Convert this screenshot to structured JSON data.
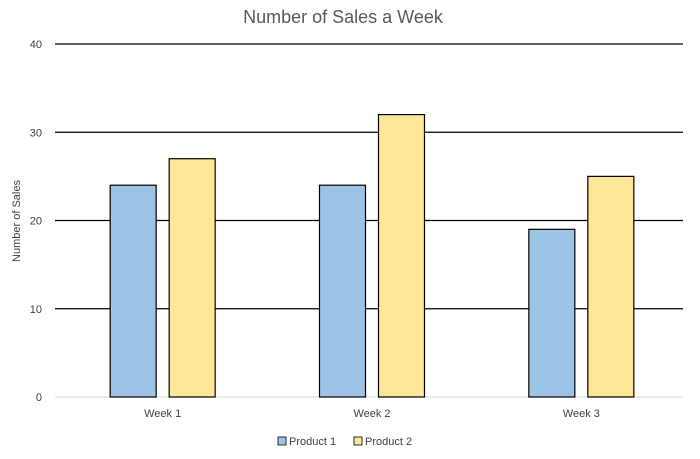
{
  "chart_data": {
    "type": "bar",
    "title": "Number of Sales a Week",
    "xlabel": "",
    "ylabel": "Number of Sales",
    "categories": [
      "Week 1",
      "Week 2",
      "Week 3"
    ],
    "series": [
      {
        "name": "Product 1",
        "values": [
          24,
          24,
          19
        ],
        "color": "#9DC3E6"
      },
      {
        "name": "Product 2",
        "values": [
          27,
          32,
          25
        ],
        "color": "#FFE699"
      }
    ],
    "ylim": [
      0,
      40
    ],
    "yticks": [
      0,
      10,
      20,
      30,
      40
    ],
    "grid": true,
    "legend": "bottom-center"
  }
}
